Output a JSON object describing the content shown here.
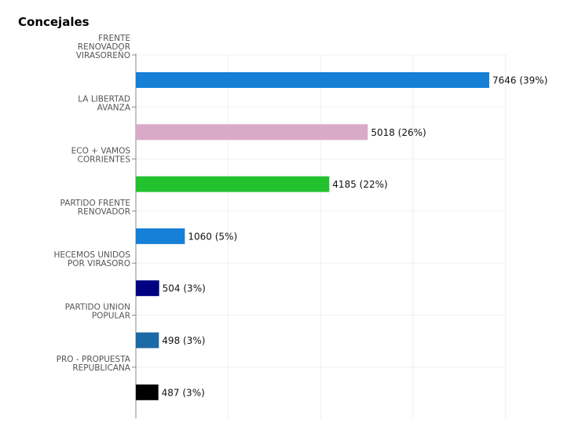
{
  "title": "Concejales",
  "chart_data": {
    "type": "bar",
    "orientation": "horizontal",
    "title": "Concejales",
    "xlabel": "",
    "ylabel": "",
    "xlim": [
      0,
      8000
    ],
    "grid": true,
    "categories": [
      "FRENTE RENOVADOR VIRASOREÑO",
      "LA LIBERTAD AVANZA",
      "ECO + VAMOS CORRIENTES",
      "PARTIDO FRENTE RENOVADOR",
      "HECEMOS UNIDOS POR VIRASORO",
      "PARTIDO UNION POPULAR",
      "PRO - PROPUESTA REPUBLICANA"
    ],
    "category_lines": [
      [
        "FRENTE",
        "RENOVADOR",
        "VIRASOREÑO"
      ],
      [
        "LA LIBERTAD",
        "AVANZA"
      ],
      [
        "ECO + VAMOS",
        "CORRIENTES"
      ],
      [
        "PARTIDO FRENTE",
        "RENOVADOR"
      ],
      [
        "HECEMOS UNIDOS",
        "POR VIRASORO"
      ],
      [
        "PARTIDO UNION",
        "POPULAR"
      ],
      [
        "PRO - PROPUESTA",
        "REPUBLICANA"
      ]
    ],
    "values": [
      7646,
      5018,
      4185,
      1060,
      504,
      498,
      487
    ],
    "data_labels": [
      "7646 (39%)",
      "5018 (26%)",
      "4185 (22%)",
      "1060 (5%)",
      "504 (3%)",
      "498 (3%)",
      "487 (3%)"
    ],
    "colors": [
      "#1580d6",
      "#d9a9c8",
      "#22c12e",
      "#1580d6",
      "#000080",
      "#1b6aa8",
      "#000000"
    ]
  }
}
